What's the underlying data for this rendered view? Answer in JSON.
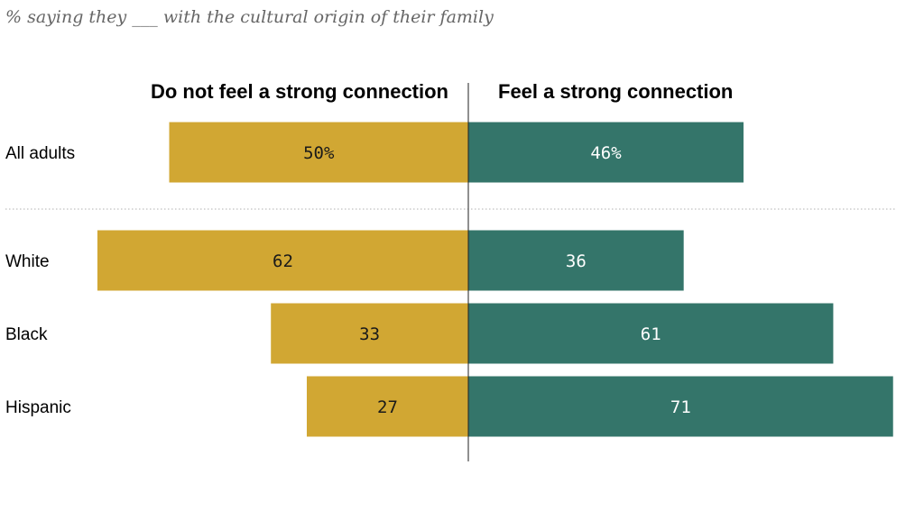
{
  "subtitle": "% saying they ___ with the cultural origin of their family",
  "colors": {
    "negative": "#D1A733",
    "positive": "#34756A",
    "axis": "#222222",
    "divider": "#B0B0B0",
    "label_dark": "#1a1a1a",
    "label_light": "#ffffff"
  },
  "chart_data": {
    "type": "bar",
    "orientation": "horizontal-diverging",
    "title": "",
    "subtitle": "% saying they ___ with the cultural origin of their family",
    "xlabel": "",
    "ylabel": "",
    "xlim": [
      -62,
      71
    ],
    "categories": [
      "All adults",
      "White",
      "Black",
      "Hispanic"
    ],
    "series": [
      {
        "name": "Do not feel a strong connection",
        "side": "left",
        "values": [
          50,
          62,
          33,
          27
        ],
        "labels": [
          "50%",
          "62",
          "33",
          "27"
        ]
      },
      {
        "name": "Feel a strong connection",
        "side": "right",
        "values": [
          46,
          36,
          61,
          71
        ],
        "labels": [
          "46%",
          "36",
          "61",
          "71"
        ]
      }
    ],
    "separator_after_category": "All adults",
    "legend": "column headers above each side"
  }
}
